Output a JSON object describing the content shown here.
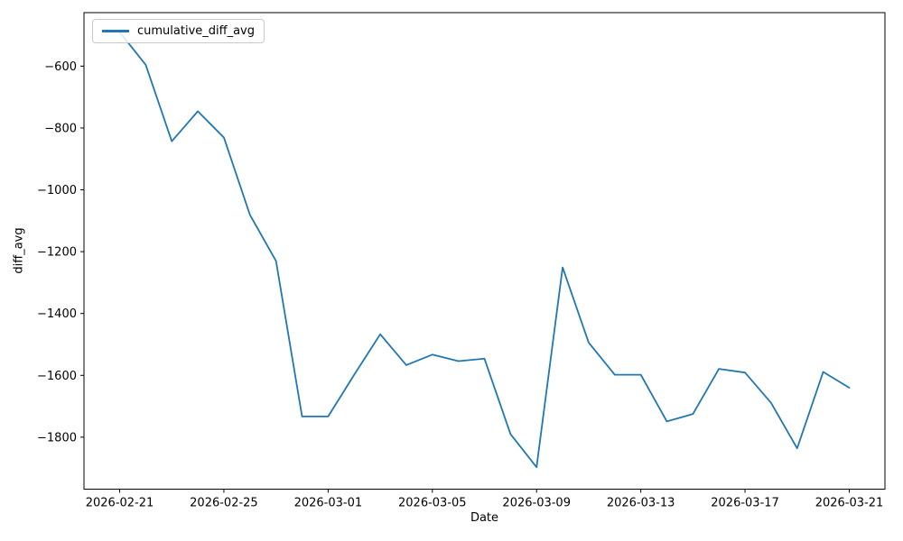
{
  "figure": {
    "background": "#ffffff"
  },
  "chart_data": {
    "type": "line",
    "title": "",
    "xlabel": "Date",
    "ylabel": "diff_avg",
    "grid": false,
    "legend_position": "upper left",
    "line_color": "#1f77b4",
    "x": [
      "2026-02-21",
      "2026-02-22",
      "2026-02-23",
      "2026-02-24",
      "2026-02-25",
      "2026-02-26",
      "2026-02-27",
      "2026-02-28",
      "2026-03-01",
      "2026-03-02",
      "2026-03-03",
      "2026-03-04",
      "2026-03-05",
      "2026-03-06",
      "2026-03-07",
      "2026-03-08",
      "2026-03-09",
      "2026-03-10",
      "2026-03-11",
      "2026-03-12",
      "2026-03-13",
      "2026-03-14",
      "2026-03-15",
      "2026-03-16",
      "2026-03-17",
      "2026-03-18",
      "2026-03-19",
      "2026-03-20",
      "2026-03-21"
    ],
    "series": [
      {
        "name": "cumulative_diff_avg",
        "color": "#1f77b4",
        "values": [
          -490,
          -596,
          -843,
          -746,
          -831,
          -1081,
          -1230,
          -1733,
          -1733,
          -1598,
          -1467,
          -1567,
          -1533,
          -1554,
          -1546,
          -1790,
          -1897,
          -1251,
          -1494,
          -1598,
          -1598,
          -1749,
          -1725,
          -1579,
          -1591,
          -1689,
          -1836,
          -1589,
          -1640
        ]
      }
    ],
    "xticks": [
      {
        "day": 0,
        "label": "2026-02-21"
      },
      {
        "day": 4,
        "label": "2026-02-25"
      },
      {
        "day": 8,
        "label": "2026-03-01"
      },
      {
        "day": 12,
        "label": "2026-03-05"
      },
      {
        "day": 16,
        "label": "2026-03-09"
      },
      {
        "day": 20,
        "label": "2026-03-13"
      },
      {
        "day": 24,
        "label": "2026-03-17"
      },
      {
        "day": 28,
        "label": "2026-03-21"
      }
    ],
    "yticks": [
      -600,
      -800,
      -1000,
      -1200,
      -1400,
      -1600,
      -1800
    ],
    "ylim": [
      -1968,
      -427
    ],
    "xlim_days": [
      -1.37,
      29.37
    ]
  }
}
